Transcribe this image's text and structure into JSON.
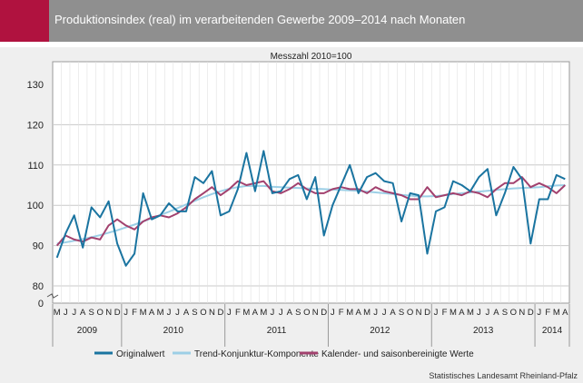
{
  "header": {
    "title": "Produktionsindex (real) im verarbeitenden Gewerbe 2009–2014 nach Monaten"
  },
  "source": "Statistisches Landesamt Rheinland-Pfalz",
  "colors": {
    "accent": "#b0123f",
    "header_bar": "#8f8f8f",
    "panel": "#efefef",
    "original": "#1a74a0",
    "trend": "#9ccfe6",
    "seasonal": "#a2416e"
  },
  "chart_data": {
    "type": "line",
    "subtitle": "Messzahl 2010=100",
    "ylim": [
      0,
      130
    ],
    "y_axis_break": [
      0,
      80
    ],
    "yticks": [
      0,
      80,
      90,
      100,
      110,
      120,
      130
    ],
    "grid": true,
    "legend_position": "bottom",
    "x_month_labels": [
      "M",
      "J",
      "J",
      "A",
      "S",
      "O",
      "N",
      "D",
      "J",
      "F",
      "M",
      "A",
      "M",
      "J",
      "J",
      "A",
      "S",
      "O",
      "N",
      "D",
      "J",
      "F",
      "M",
      "A",
      "M",
      "J",
      "J",
      "A",
      "S",
      "O",
      "N",
      "D",
      "J",
      "F",
      "M",
      "A",
      "M",
      "J",
      "J",
      "A",
      "S",
      "O",
      "N",
      "D",
      "J",
      "F",
      "M",
      "A",
      "M",
      "J",
      "J",
      "A",
      "S",
      "O",
      "N",
      "D",
      "J",
      "F",
      "M",
      "A"
    ],
    "year_groups": [
      {
        "label": "2009",
        "months": 8
      },
      {
        "label": "2010",
        "months": 12
      },
      {
        "label": "2011",
        "months": 12
      },
      {
        "label": "2012",
        "months": 12
      },
      {
        "label": "2013",
        "months": 12
      },
      {
        "label": "2014",
        "months": 4
      }
    ],
    "series": [
      {
        "name": "Originalwert",
        "color": "#1a74a0",
        "values": [
          87,
          93,
          97.5,
          89.5,
          99.5,
          97,
          101,
          90.5,
          85,
          88,
          103,
          96.5,
          97.5,
          100.5,
          98.5,
          98.5,
          107,
          105.5,
          108.5,
          97.5,
          98.5,
          104,
          113,
          103.5,
          113.5,
          103,
          103.5,
          106.5,
          107.5,
          101.5,
          107,
          92.5,
          100,
          105,
          110,
          103,
          107,
          108,
          106,
          105.5,
          96,
          103,
          102.5,
          88,
          98.5,
          99.5,
          106,
          105,
          103.5,
          107,
          109,
          97.5,
          103,
          109.5,
          106.5,
          90.5,
          101.5,
          101.5,
          107.5,
          106.5
        ]
      },
      {
        "name": "Trend-Konjunktur-Komponente",
        "color": "#9ccfe6",
        "values": [
          90.5,
          90.8,
          91.2,
          91.6,
          92.1,
          92.6,
          93.2,
          93.8,
          94.5,
          95.2,
          96,
          96.8,
          97.6,
          98.4,
          99.3,
          100.2,
          101.1,
          102,
          102.8,
          103.5,
          104.1,
          104.5,
          104.8,
          104.8,
          104.8,
          104.6,
          104.5,
          104.4,
          104.3,
          104.2,
          104.1,
          104,
          103.9,
          103.8,
          103.7,
          103.6,
          103.4,
          103.2,
          103,
          102.8,
          102.6,
          102.4,
          102.2,
          102.2,
          102.3,
          102.5,
          102.8,
          103,
          103.2,
          103.4,
          103.6,
          103.8,
          104,
          104.2,
          104.3,
          104.4,
          104.5,
          104.7,
          104.9,
          105
        ]
      },
      {
        "name": "Kalender- und saisonbereinigte Werte",
        "color": "#a2416e",
        "values": [
          90,
          92.5,
          91.5,
          91,
          92,
          91.5,
          95,
          96.5,
          95,
          94,
          96,
          97,
          97.5,
          97,
          98,
          99.5,
          101.5,
          103,
          104.5,
          102.5,
          104,
          106,
          105,
          105.5,
          106,
          103.5,
          103,
          104,
          105.5,
          104,
          103,
          103,
          104,
          104.5,
          104,
          104,
          103,
          104.5,
          103.5,
          103,
          102.5,
          101.5,
          101.5,
          104.5,
          102,
          102.5,
          103,
          102.5,
          103.5,
          103,
          102,
          104,
          105.5,
          105.5,
          107,
          104.5,
          105.5,
          104.5,
          103,
          105
        ]
      }
    ]
  }
}
